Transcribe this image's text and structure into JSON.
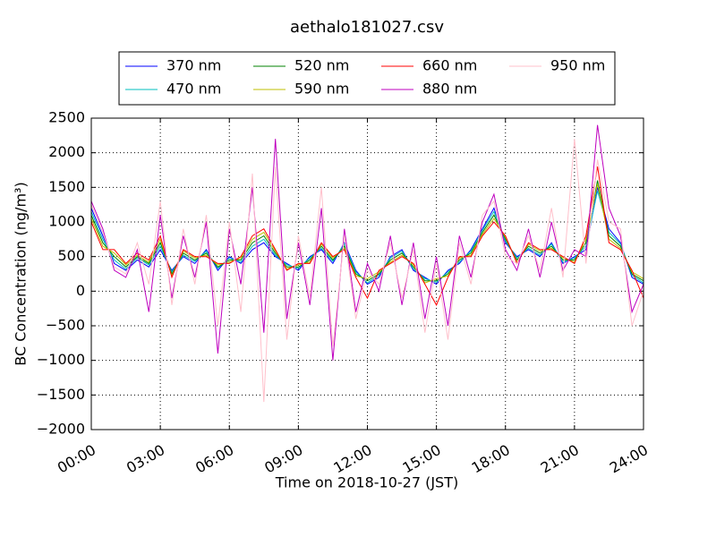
{
  "chart_data": {
    "type": "line",
    "title": "aethalo181027.csv",
    "xlabel": "Time on 2018-10-27 (JST)",
    "ylabel": "BC Concentration (ng/m³)",
    "x": [
      "00:00",
      "00:30",
      "01:00",
      "01:30",
      "02:00",
      "02:30",
      "03:00",
      "03:30",
      "04:00",
      "04:30",
      "05:00",
      "05:30",
      "06:00",
      "06:30",
      "07:00",
      "07:30",
      "08:00",
      "08:30",
      "09:00",
      "09:30",
      "10:00",
      "10:30",
      "11:00",
      "11:30",
      "12:00",
      "12:30",
      "13:00",
      "13:30",
      "14:00",
      "14:30",
      "15:00",
      "15:30",
      "16:00",
      "16:30",
      "17:00",
      "17:30",
      "18:00",
      "18:30",
      "19:00",
      "19:30",
      "20:00",
      "20:30",
      "21:00",
      "21:30",
      "22:00",
      "22:30",
      "23:00",
      "23:30",
      "24:00"
    ],
    "xlim": [
      "00:00",
      "24:00"
    ],
    "xticks": [
      "00:00",
      "03:00",
      "06:00",
      "09:00",
      "12:00",
      "15:00",
      "18:00",
      "21:00",
      "24:00"
    ],
    "ylim": [
      -2000,
      2500
    ],
    "yticks": [
      {
        "value": -2000,
        "label": "−2000"
      },
      {
        "value": -1500,
        "label": "−1500"
      },
      {
        "value": -1000,
        "label": "−1000"
      },
      {
        "value": -500,
        "label": "−500"
      },
      0,
      500,
      1000,
      1500,
      2000,
      2500
    ],
    "grid": true,
    "legend": "top",
    "series": [
      {
        "name": "370 nm",
        "color": "#0000ff",
        "values": [
          1200,
          800,
          400,
          300,
          450,
          350,
          600,
          300,
          500,
          400,
          600,
          300,
          500,
          400,
          600,
          700,
          500,
          400,
          300,
          500,
          600,
          400,
          700,
          300,
          100,
          200,
          500,
          600,
          300,
          200,
          100,
          300,
          400,
          600,
          900,
          1200,
          700,
          500,
          600,
          500,
          700,
          400,
          500,
          600,
          1500,
          900,
          700,
          200,
          100
        ]
      },
      {
        "name": "470 nm",
        "color": "#00bfbf",
        "values": [
          1150,
          750,
          450,
          320,
          480,
          380,
          650,
          280,
          520,
          430,
          580,
          330,
          480,
          420,
          650,
          750,
          520,
          380,
          330,
          480,
          620,
          430,
          680,
          280,
          120,
          230,
          480,
          580,
          320,
          180,
          130,
          280,
          420,
          580,
          880,
          1150,
          720,
          480,
          620,
          520,
          680,
          420,
          480,
          650,
          1450,
          850,
          680,
          230,
          120
        ]
      },
      {
        "name": "520 nm",
        "color": "#008000",
        "values": [
          1100,
          700,
          500,
          350,
          500,
          400,
          700,
          250,
          550,
          450,
          550,
          350,
          450,
          450,
          700,
          800,
          550,
          350,
          350,
          450,
          650,
          450,
          650,
          250,
          150,
          250,
          450,
          550,
          350,
          150,
          150,
          250,
          450,
          550,
          850,
          1100,
          750,
          450,
          650,
          550,
          650,
          450,
          450,
          700,
          1600,
          800,
          650,
          250,
          150
        ]
      },
      {
        "name": "590 nm",
        "color": "#bfbf00",
        "values": [
          1050,
          650,
          550,
          380,
          520,
          420,
          750,
          220,
          580,
          480,
          520,
          380,
          420,
          480,
          750,
          850,
          580,
          320,
          380,
          420,
          680,
          480,
          620,
          220,
          180,
          280,
          420,
          520,
          380,
          120,
          180,
          220,
          480,
          520,
          820,
          1050,
          780,
          420,
          680,
          580,
          620,
          480,
          420,
          750,
          1550,
          750,
          620,
          280,
          180
        ]
      },
      {
        "name": "660 nm",
        "color": "#ff0000",
        "values": [
          1000,
          600,
          600,
          400,
          550,
          450,
          800,
          200,
          600,
          500,
          500,
          400,
          400,
          500,
          800,
          900,
          600,
          300,
          400,
          400,
          700,
          500,
          600,
          200,
          -100,
          300,
          400,
          500,
          400,
          100,
          -200,
          200,
          500,
          500,
          800,
          1000,
          800,
          400,
          700,
          600,
          600,
          500,
          400,
          800,
          1800,
          700,
          600,
          300,
          -100
        ]
      },
      {
        "name": "880 nm",
        "color": "#bf00bf",
        "values": [
          1300,
          900,
          300,
          200,
          600,
          -300,
          1100,
          -100,
          800,
          200,
          1000,
          -900,
          900,
          100,
          1500,
          -600,
          2200,
          -400,
          700,
          -200,
          1200,
          -1000,
          900,
          -300,
          400,
          0,
          800,
          -200,
          700,
          -400,
          500,
          -500,
          800,
          200,
          1000,
          1400,
          600,
          300,
          900,
          200,
          1000,
          300,
          600,
          500,
          2400,
          1200,
          800,
          -300,
          100
        ]
      },
      {
        "name": "950 nm",
        "color": "#ffc0cb",
        "values": [
          1250,
          850,
          350,
          250,
          700,
          100,
          1300,
          -200,
          900,
          100,
          1100,
          -500,
          1000,
          -300,
          1700,
          -1600,
          1800,
          -700,
          800,
          -100,
          1500,
          -800,
          800,
          -400,
          300,
          100,
          700,
          -100,
          600,
          -600,
          400,
          -700,
          700,
          100,
          1100,
          1300,
          500,
          400,
          800,
          300,
          1200,
          200,
          2200,
          400,
          1900,
          1000,
          900,
          -500,
          0
        ]
      }
    ]
  }
}
